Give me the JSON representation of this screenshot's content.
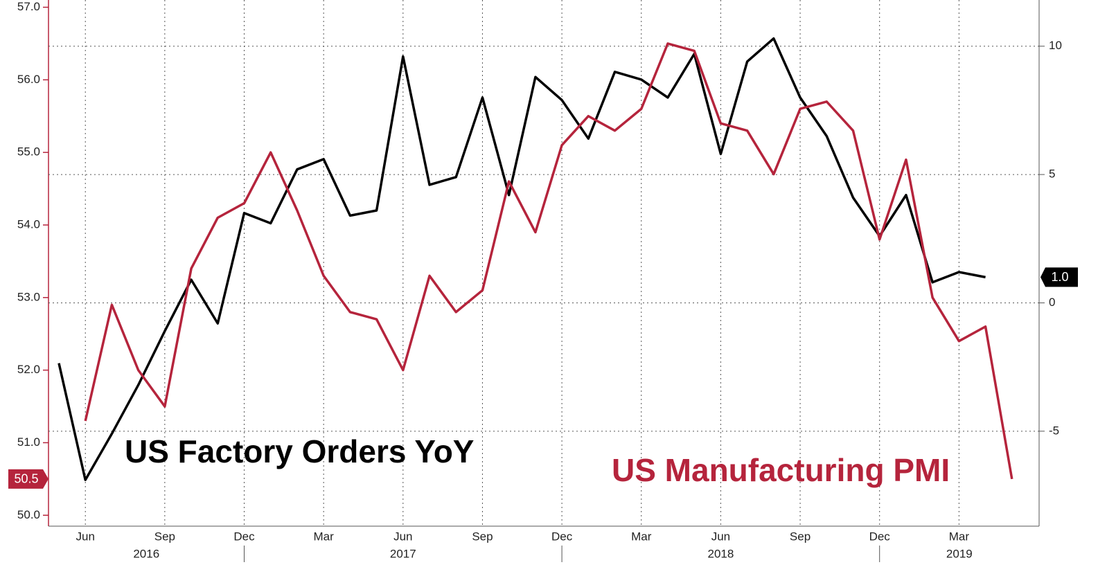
{
  "chart_data": {
    "type": "line",
    "annotations": [
      "US Factory Orders YoY",
      "US Manufacturing PMI"
    ],
    "x": [
      "2016-05",
      "2016-06",
      "2016-07",
      "2016-08",
      "2016-09",
      "2016-10",
      "2016-11",
      "2016-12",
      "2017-01",
      "2017-02",
      "2017-03",
      "2017-04",
      "2017-05",
      "2017-06",
      "2017-07",
      "2017-08",
      "2017-09",
      "2017-10",
      "2017-11",
      "2017-12",
      "2018-01",
      "2018-02",
      "2018-03",
      "2018-04",
      "2018-05",
      "2018-06",
      "2018-07",
      "2018-08",
      "2018-09",
      "2018-10",
      "2018-11",
      "2018-12",
      "2019-01",
      "2019-02",
      "2019-03",
      "2019-04",
      "2019-05"
    ],
    "xlim": [
      "2016-05",
      "2019-06"
    ],
    "xticks": [
      {
        "value": "2016-06",
        "label": "Jun"
      },
      {
        "value": "2016-09",
        "label": "Sep"
      },
      {
        "value": "2016-12",
        "label": "Dec"
      },
      {
        "value": "2017-03",
        "label": "Mar"
      },
      {
        "value": "2017-06",
        "label": "Jun"
      },
      {
        "value": "2017-09",
        "label": "Sep"
      },
      {
        "value": "2017-12",
        "label": "Dec"
      },
      {
        "value": "2018-03",
        "label": "Mar"
      },
      {
        "value": "2018-06",
        "label": "Jun"
      },
      {
        "value": "2018-09",
        "label": "Sep"
      },
      {
        "value": "2018-12",
        "label": "Dec"
      },
      {
        "value": "2019-03",
        "label": "Mar"
      }
    ],
    "x_year_labels": [
      "2016",
      "2017",
      "2018",
      "2019"
    ],
    "ylim": [
      49.85,
      57.1
    ],
    "yticks": [
      {
        "value": 50,
        "label": "50.0"
      },
      {
        "value": 51,
        "label": "51.0"
      },
      {
        "value": 52,
        "label": "52.0"
      },
      {
        "value": 53,
        "label": "53.0"
      },
      {
        "value": 54,
        "label": "54.0"
      },
      {
        "value": 55,
        "label": "55.0"
      },
      {
        "value": 56,
        "label": "56.0"
      },
      {
        "value": 57,
        "label": "57.0"
      }
    ],
    "y2lim": [
      -8.7,
      11.8
    ],
    "y2ticks": [
      -5,
      0,
      5,
      10
    ],
    "grid": true,
    "series": [
      {
        "name": "US Factory Orders YoY",
        "color": "#000000",
        "axis": "y2",
        "values": [
          -2.35,
          -6.9,
          -5.1,
          -3.2,
          -1.1,
          0.9,
          -0.8,
          3.5,
          3.1,
          5.2,
          5.6,
          3.4,
          3.6,
          9.6,
          4.6,
          4.9,
          8.0,
          4.2,
          8.8,
          7.9,
          6.4,
          9.0,
          8.7,
          8.0,
          9.7,
          5.8,
          9.4,
          10.3,
          8.0,
          6.5,
          4.1,
          2.6,
          4.2,
          0.8,
          1.2,
          1.0,
          null
        ],
        "value_labels": [
          null,
          null,
          null,
          null,
          null,
          null,
          null,
          null,
          null,
          null,
          null,
          null,
          null,
          null,
          null,
          null,
          null,
          null,
          null,
          null,
          null,
          null,
          null,
          null,
          null,
          null,
          null,
          null,
          null,
          null,
          null,
          null,
          null,
          null,
          null,
          "1.0",
          null
        ]
      },
      {
        "name": "US Manufacturing PMI",
        "color": "#b5243c",
        "axis": "y",
        "values": [
          null,
          51.3,
          52.9,
          52.0,
          51.5,
          53.4,
          54.1,
          54.3,
          55.0,
          54.2,
          53.3,
          52.8,
          52.7,
          52.0,
          53.3,
          52.8,
          53.1,
          54.6,
          53.9,
          55.1,
          55.5,
          55.3,
          55.6,
          56.5,
          56.4,
          55.4,
          55.3,
          54.7,
          55.6,
          55.7,
          55.3,
          53.8,
          54.9,
          53.0,
          52.4,
          52.6,
          50.5
        ],
        "value_labels": [
          null,
          null,
          null,
          null,
          null,
          null,
          null,
          null,
          null,
          null,
          null,
          null,
          null,
          null,
          null,
          null,
          null,
          null,
          null,
          null,
          null,
          null,
          null,
          null,
          null,
          null,
          null,
          null,
          null,
          null,
          null,
          null,
          null,
          null,
          null,
          null,
          "50.5"
        ]
      }
    ]
  }
}
